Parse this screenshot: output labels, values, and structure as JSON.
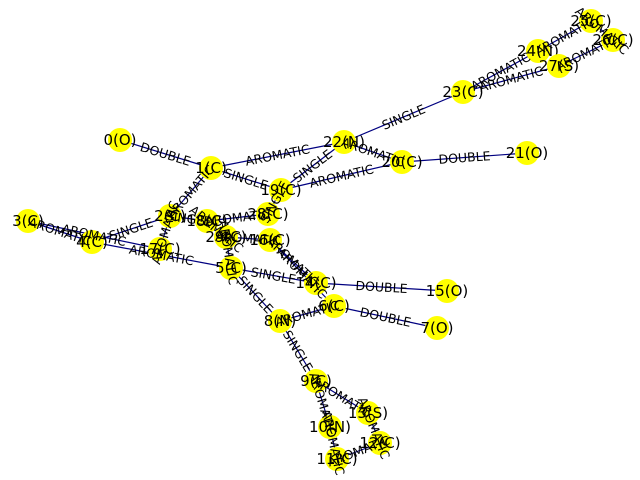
{
  "colors": {
    "node_fill": "#ffff00",
    "edge": "#000080",
    "label": "#000000"
  },
  "nodes": [
    {
      "id": 0,
      "label": "0(O)"
    },
    {
      "id": 1,
      "label": "1(C)"
    },
    {
      "id": 2,
      "label": "2(C)"
    },
    {
      "id": 3,
      "label": "3(C)"
    },
    {
      "id": 4,
      "label": "4(C)"
    },
    {
      "id": 5,
      "label": "5(C)"
    },
    {
      "id": 6,
      "label": "6(C)"
    },
    {
      "id": 7,
      "label": "7(O)"
    },
    {
      "id": 8,
      "label": "8(N)"
    },
    {
      "id": 9,
      "label": "9(C)"
    },
    {
      "id": 10,
      "label": "10(N)"
    },
    {
      "id": 11,
      "label": "11(C)"
    },
    {
      "id": 12,
      "label": "12(C)"
    },
    {
      "id": 13,
      "label": "13(S)"
    },
    {
      "id": 14,
      "label": "14(C)"
    },
    {
      "id": 15,
      "label": "15(O)"
    },
    {
      "id": 16,
      "label": "16(C)"
    },
    {
      "id": 17,
      "label": "17(C)"
    },
    {
      "id": 18,
      "label": "18(C)"
    },
    {
      "id": 19,
      "label": "19(C)"
    },
    {
      "id": 20,
      "label": "20(C)"
    },
    {
      "id": 21,
      "label": "21(O)"
    },
    {
      "id": 22,
      "label": "22(N)"
    },
    {
      "id": 23,
      "label": "23(C)"
    },
    {
      "id": 24,
      "label": "24(N)"
    },
    {
      "id": 25,
      "label": "25(C)"
    },
    {
      "id": 26,
      "label": "26(C)"
    },
    {
      "id": 27,
      "label": "27(S)"
    },
    {
      "id": 28,
      "label": "28(C)"
    },
    {
      "id": 29,
      "label": "29(C)"
    }
  ],
  "edges": [
    {
      "s": 0,
      "t": 1,
      "label": "DOUBLE"
    },
    {
      "s": 1,
      "t": 22,
      "label": "AROMATIC"
    },
    {
      "s": 1,
      "t": 2,
      "label": "AROMATIC"
    },
    {
      "s": 1,
      "t": 19,
      "label": "SINGLE"
    },
    {
      "s": 2,
      "t": 4,
      "label": "SINGLE"
    },
    {
      "s": 2,
      "t": 18,
      "label": "SINGLE"
    },
    {
      "s": 2,
      "t": 17,
      "label": "AROMATIC"
    },
    {
      "s": 3,
      "t": 4,
      "label": "AROMATIC"
    },
    {
      "s": 3,
      "t": 17,
      "label": "AROMATIC"
    },
    {
      "s": 4,
      "t": 5,
      "label": "AROMATIC"
    },
    {
      "s": 5,
      "t": 14,
      "label": "SINGLE"
    },
    {
      "s": 5,
      "t": 8,
      "label": "SINGLE"
    },
    {
      "s": 5,
      "t": 29,
      "label": "AROMATIC"
    },
    {
      "s": 6,
      "t": 7,
      "label": "DOUBLE"
    },
    {
      "s": 6,
      "t": 8,
      "label": "AROMATIC"
    },
    {
      "s": 6,
      "t": 16,
      "label": "AROMATIC"
    },
    {
      "s": 8,
      "t": 9,
      "label": "SINGLE"
    },
    {
      "s": 9,
      "t": 13,
      "label": "AROMATIC"
    },
    {
      "s": 9,
      "t": 10,
      "label": "AROMATIC"
    },
    {
      "s": 10,
      "t": 11,
      "label": "AROMATIC"
    },
    {
      "s": 11,
      "t": 12,
      "label": "AROMATIC"
    },
    {
      "s": 12,
      "t": 13,
      "label": "AROMATIC"
    },
    {
      "s": 14,
      "t": 15,
      "label": "DOUBLE"
    },
    {
      "s": 14,
      "t": 16,
      "label": "AROMATIC"
    },
    {
      "s": 16,
      "t": 29,
      "label": "AROMATIC"
    },
    {
      "s": 18,
      "t": 28,
      "label": "AROMATIC"
    },
    {
      "s": 18,
      "t": 29,
      "label": "AROMATIC"
    },
    {
      "s": 19,
      "t": 22,
      "label": "SINGLE"
    },
    {
      "s": 19,
      "t": 20,
      "label": "AROMATIC"
    },
    {
      "s": 19,
      "t": 28,
      "label": "SINGLE"
    },
    {
      "s": 20,
      "t": 21,
      "label": "DOUBLE"
    },
    {
      "s": 20,
      "t": 22,
      "label": "AROMATIC"
    },
    {
      "s": 22,
      "t": 23,
      "label": "SINGLE"
    },
    {
      "s": 23,
      "t": 24,
      "label": "AROMATIC"
    },
    {
      "s": 23,
      "t": 27,
      "label": "AROMATIC"
    },
    {
      "s": 24,
      "t": 25,
      "label": "AROMATIC"
    },
    {
      "s": 25,
      "t": 26,
      "label": "AROMATIC"
    },
    {
      "s": 26,
      "t": 27,
      "label": "AROMATIC"
    }
  ]
}
